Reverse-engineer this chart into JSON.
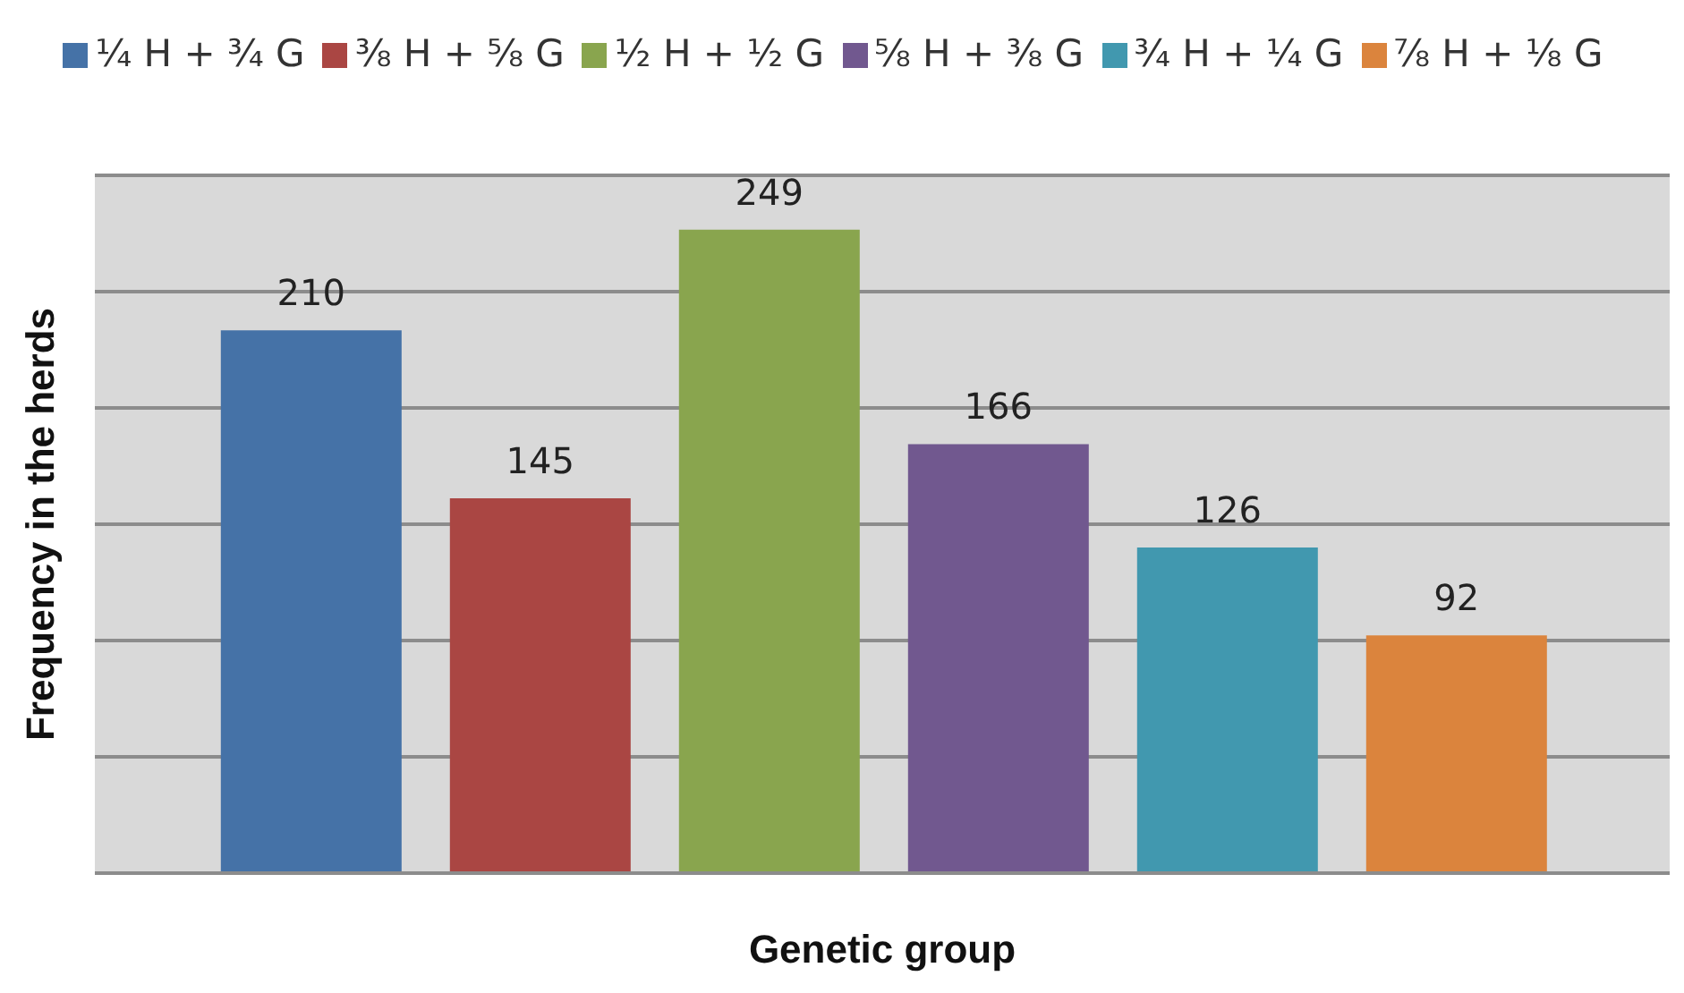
{
  "chart_data": {
    "type": "bar",
    "xlabel": "Genetic group",
    "ylabel": "Frequency in the herds",
    "categories": [
      null
    ],
    "series": [
      {
        "name": "¼ H + ¾ G",
        "color": "#4572a7",
        "values": [
          210
        ]
      },
      {
        "name": "⅜ H + ⅝ G",
        "color": "#aa4643",
        "values": [
          145
        ]
      },
      {
        "name": "½ H + ½ G",
        "color": "#89a54e",
        "values": [
          249
        ]
      },
      {
        "name": "⅝ H + ⅜ G",
        "color": "#71588f",
        "values": [
          166
        ]
      },
      {
        "name": "¾ H + ¼ G",
        "color": "#4198af",
        "values": [
          126
        ]
      },
      {
        "name": "⅞ H + ⅛ G",
        "color": "#db843d",
        "values": [
          92
        ]
      }
    ],
    "grid": "y",
    "legend": "top",
    "data_labels": true
  }
}
